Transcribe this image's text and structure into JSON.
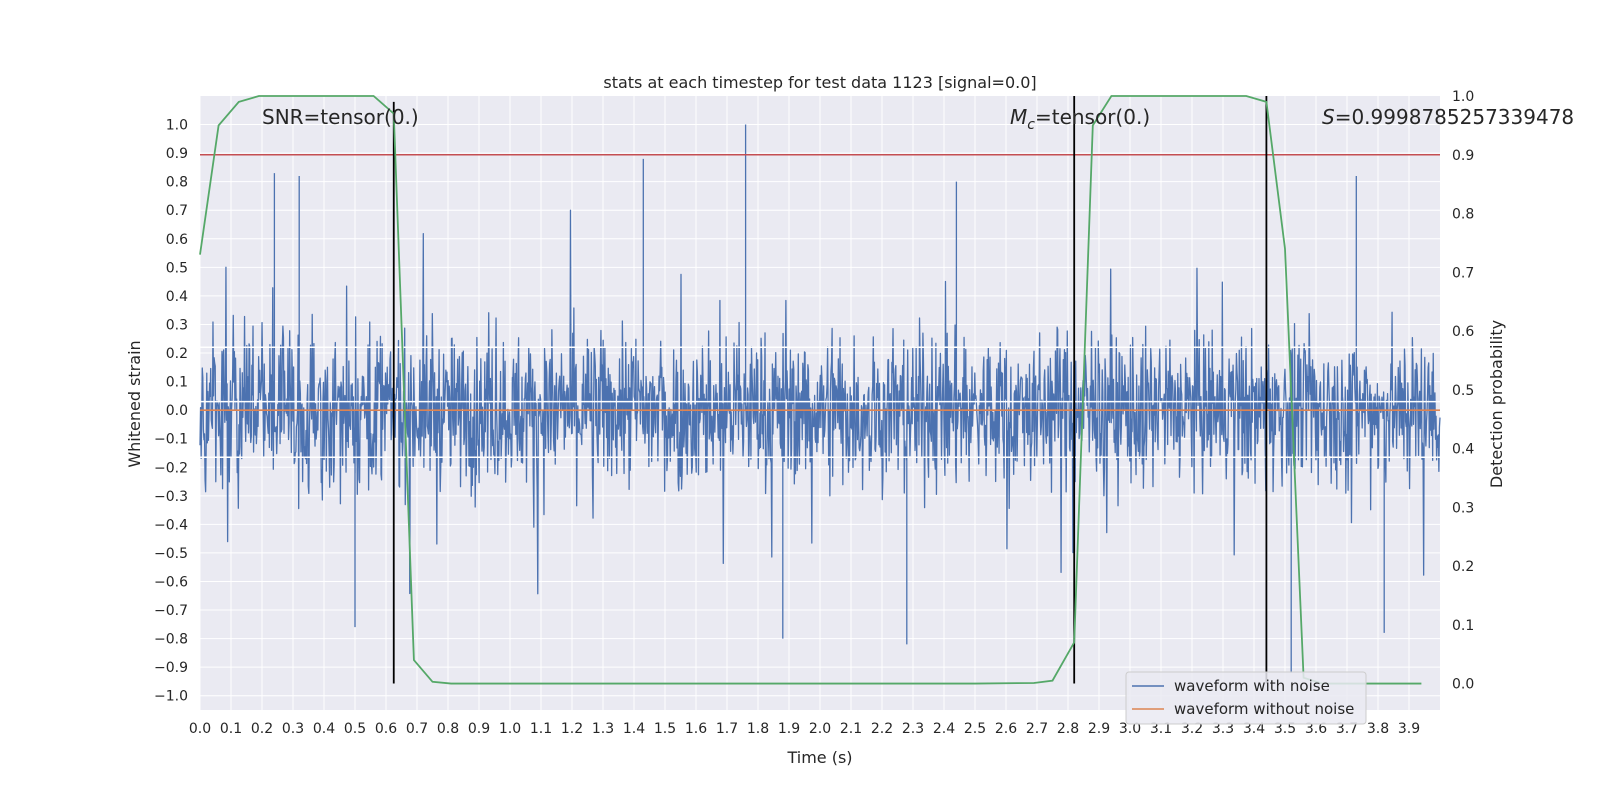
{
  "chart_data": {
    "type": "line",
    "title": "stats at each timestep for test data 1123 [signal=0.0]",
    "xlabel": "Time (s)",
    "ylabel": "Whitened strain",
    "y2label": "Detection probability",
    "xlim": [
      0.0,
      4.0
    ],
    "ylim": [
      -1.05,
      1.1
    ],
    "y2lim": [
      -0.045,
      1.0
    ],
    "x_ticks": [
      0.0,
      0.1,
      0.2,
      0.3,
      0.4,
      0.5,
      0.6,
      0.7,
      0.8,
      0.9,
      1.0,
      1.1,
      1.2,
      1.3,
      1.4,
      1.5,
      1.6,
      1.7,
      1.8,
      1.9,
      2.0,
      2.1,
      2.2,
      2.3,
      2.4,
      2.5,
      2.6,
      2.7,
      2.8,
      2.9,
      3.0,
      3.1,
      3.2,
      3.3,
      3.4,
      3.5,
      3.6,
      3.7,
      3.8,
      3.9
    ],
    "y_ticks": [
      1.0,
      0.9,
      0.8,
      0.7,
      0.6,
      0.5,
      0.4,
      0.3,
      0.2,
      0.1,
      0.0,
      -0.1,
      -0.2,
      -0.3,
      -0.4,
      -0.5,
      -0.6,
      -0.7,
      -0.8,
      -0.9,
      -1.0
    ],
    "y2_ticks": [
      1.0,
      0.9,
      0.8,
      0.7,
      0.6,
      0.5,
      0.4,
      0.3,
      0.2,
      0.1,
      0.0
    ],
    "grid": true,
    "legend_position": "lower-right",
    "annotations": {
      "snr": "SNR=tensor(0.)",
      "mc_symbol": "M",
      "mc_sub": "c",
      "mc_value": "=tensor(0.)",
      "s_symbol": "S",
      "s_value": "=0.9998785257339478"
    },
    "series": [
      {
        "name": "waveform with noise",
        "axis": "left",
        "color": "#4c72b0",
        "style": "dense-noise",
        "amplitude_envelope": {
          "typical": 0.45,
          "max": 1.0,
          "min": -0.82
        },
        "peaks": [
          {
            "x": 0.24,
            "y": 0.83
          },
          {
            "x": 0.32,
            "y": 0.82
          },
          {
            "x": 1.43,
            "y": 0.88
          },
          {
            "x": 1.76,
            "y": 1.0
          },
          {
            "x": 2.44,
            "y": 0.8
          },
          {
            "x": 3.73,
            "y": 0.82
          },
          {
            "x": 0.5,
            "y": -0.76
          },
          {
            "x": 1.88,
            "y": -0.8
          },
          {
            "x": 2.28,
            "y": -0.82
          },
          {
            "x": 3.82,
            "y": -0.78
          },
          {
            "x": 3.52,
            "y": -0.92
          }
        ]
      },
      {
        "name": "waveform without noise",
        "axis": "left",
        "color": "#dd8452",
        "x": [
          0.0,
          4.0
        ],
        "y": [
          0.0,
          0.0
        ]
      },
      {
        "name": "detection probability",
        "axis": "right",
        "color": "#55a868",
        "x": [
          0.0,
          0.06,
          0.125,
          0.19,
          0.25,
          0.31,
          0.375,
          0.44,
          0.5,
          0.56,
          0.625,
          0.69,
          0.75,
          0.81,
          0.875,
          0.94,
          1.0,
          1.5,
          2.0,
          2.5,
          2.69,
          2.75,
          2.82,
          2.88,
          2.94,
          3.0,
          3.06,
          3.12,
          3.19,
          3.25,
          3.31,
          3.375,
          3.44,
          3.5,
          3.56,
          3.62,
          3.69,
          3.75,
          3.81,
          3.875,
          3.94
        ],
        "y": [
          0.73,
          0.95,
          0.99,
          1.0,
          1.0,
          1.0,
          1.0,
          1.0,
          1.0,
          1.0,
          0.97,
          0.04,
          0.003,
          0.0,
          0.0,
          0.0,
          0.0,
          0.0,
          0.0,
          0.0,
          0.001,
          0.005,
          0.07,
          0.95,
          1.0,
          1.0,
          1.0,
          1.0,
          1.0,
          1.0,
          1.0,
          1.0,
          0.99,
          0.74,
          0.01,
          0.0,
          0.0,
          0.0,
          0.0,
          0.0,
          0.0
        ]
      }
    ],
    "hlines": [
      {
        "axis": "right",
        "y": 0.9,
        "color": "#c44e52"
      },
      {
        "axis": "left",
        "y": 0.22,
        "color": "#ffffff"
      },
      {
        "axis": "left",
        "y": -0.165,
        "color": "#ffffff"
      },
      {
        "axis": "left",
        "y": 0.03,
        "color": "#ffffff"
      }
    ],
    "vlines": [
      {
        "x": 0.625,
        "y2_range": [
          0.0,
          0.99
        ],
        "color": "#000000"
      },
      {
        "x": 2.82,
        "y2_range": [
          0.0,
          1.0
        ],
        "color": "#000000"
      },
      {
        "x": 3.44,
        "y2_range": [
          0.0,
          1.0
        ],
        "color": "#000000"
      }
    ]
  }
}
